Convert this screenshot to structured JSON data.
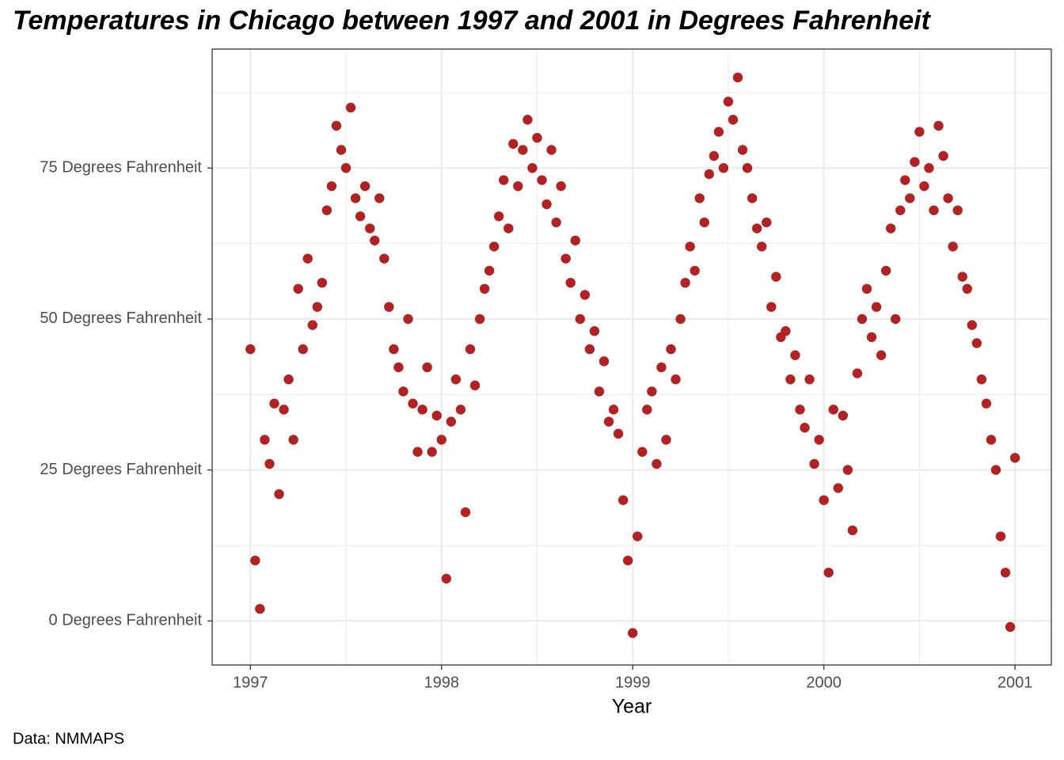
{
  "chart_data": {
    "type": "scatter",
    "title": "Temperatures in Chicago between 1997 and 2001 in Degrees Fahrenheit",
    "x_label": "Year",
    "caption": "Data: NMMAPS",
    "color": "#b22222",
    "grid": true,
    "xlim": [
      1996.8,
      2001.19
    ],
    "ylim": [
      -7.3,
      94.7
    ],
    "xticks": [
      1997,
      1998,
      1999,
      2000,
      2001
    ],
    "yticks": [
      {
        "value": 0,
        "label": "0 Degrees Fahrenheit"
      },
      {
        "value": 25,
        "label": "25 Degrees Fahrenheit"
      },
      {
        "value": 50,
        "label": "50 Degrees Fahrenheit"
      },
      {
        "value": 75,
        "label": "75 Degrees Fahrenheit"
      }
    ],
    "x": [
      1997,
      1997.025,
      1997.05,
      1997.075,
      1997.1,
      1997.125,
      1997.15,
      1997.175,
      1997.2,
      1997.225,
      1997.25,
      1997.275,
      1997.3,
      1997.325,
      1997.35,
      1997.375,
      1997.4,
      1997.425,
      1997.45,
      1997.475,
      1997.5,
      1997.525,
      1997.55,
      1997.575,
      1997.6,
      1997.625,
      1997.65,
      1997.675,
      1997.7,
      1997.725,
      1997.75,
      1997.775,
      1997.8,
      1997.825,
      1997.85,
      1997.875,
      1997.9,
      1997.925,
      1997.95,
      1997.975,
      1998,
      1998.025,
      1998.05,
      1998.075,
      1998.1,
      1998.125,
      1998.15,
      1998.175,
      1998.2,
      1998.225,
      1998.25,
      1998.275,
      1998.3,
      1998.325,
      1998.35,
      1998.375,
      1998.4,
      1998.425,
      1998.45,
      1998.475,
      1998.5,
      1998.525,
      1998.55,
      1998.575,
      1998.6,
      1998.625,
      1998.65,
      1998.675,
      1998.7,
      1998.725,
      1998.75,
      1998.775,
      1998.8,
      1998.825,
      1998.85,
      1998.875,
      1998.9,
      1998.925,
      1998.95,
      1998.975,
      1999,
      1999.025,
      1999.05,
      1999.075,
      1999.1,
      1999.125,
      1999.15,
      1999.175,
      1999.2,
      1999.225,
      1999.25,
      1999.275,
      1999.3,
      1999.325,
      1999.35,
      1999.375,
      1999.4,
      1999.425,
      1999.45,
      1999.475,
      1999.5,
      1999.525,
      1999.55,
      1999.575,
      1999.6,
      1999.625,
      1999.65,
      1999.675,
      1999.7,
      1999.725,
      1999.75,
      1999.775,
      1999.8,
      1999.825,
      1999.85,
      1999.875,
      1999.9,
      1999.925,
      1999.95,
      1999.975,
      2000,
      2000.025,
      2000.05,
      2000.075,
      2000.1,
      2000.125,
      2000.15,
      2000.175,
      2000.2,
      2000.225,
      2000.25,
      2000.275,
      2000.3,
      2000.325,
      2000.35,
      2000.375,
      2000.4,
      2000.425,
      2000.45,
      2000.475,
      2000.5,
      2000.525,
      2000.55,
      2000.575,
      2000.6,
      2000.625,
      2000.65,
      2000.675,
      2000.7,
      2000.725,
      2000.75,
      2000.775,
      2000.8,
      2000.825,
      2000.85,
      2000.875,
      2000.9,
      2000.925,
      2000.95,
      2000.975,
      2001
    ],
    "values": [
      45,
      10,
      2,
      30,
      26,
      36,
      21,
      35,
      40,
      30,
      55,
      45,
      60,
      49,
      52,
      56,
      68,
      72,
      82,
      78,
      75,
      85,
      70,
      67,
      72,
      65,
      63,
      70,
      60,
      52,
      45,
      42,
      38,
      50,
      36,
      28,
      35,
      42,
      28,
      34,
      30,
      7,
      33,
      40,
      35,
      18,
      45,
      39,
      50,
      55,
      58,
      62,
      67,
      73,
      65,
      79,
      72,
      78,
      83,
      75,
      80,
      73,
      69,
      78,
      66,
      72,
      60,
      56,
      63,
      50,
      54,
      45,
      48,
      38,
      43,
      33,
      35,
      31,
      20,
      10,
      -2,
      14,
      28,
      35,
      38,
      26,
      42,
      30,
      45,
      40,
      50,
      56,
      62,
      58,
      70,
      66,
      74,
      77,
      81,
      75,
      86,
      83,
      90,
      78,
      75,
      70,
      65,
      62,
      66,
      52,
      57,
      47,
      48,
      40,
      44,
      35,
      32,
      40,
      26,
      30,
      20,
      8,
      35,
      22,
      34,
      25,
      15,
      41,
      50,
      55,
      47,
      52,
      44,
      58,
      65,
      50,
      68,
      73,
      70,
      76,
      81,
      72,
      75,
      68,
      82,
      77,
      70,
      62,
      68,
      57,
      55,
      49,
      46,
      40,
      36,
      30,
      25,
      14,
      8,
      -1,
      27
    ]
  }
}
